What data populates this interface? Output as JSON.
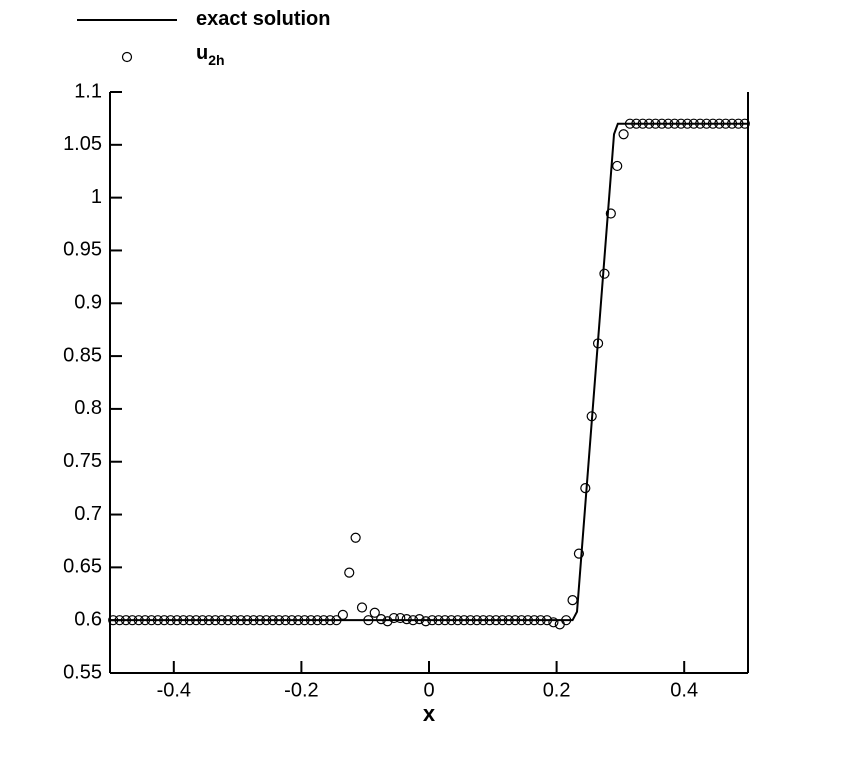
{
  "chart_data": {
    "type": "line-scatter",
    "xlabel": "x",
    "xlim": [
      -0.5,
      0.5
    ],
    "xticks": [
      -0.4,
      -0.2,
      0,
      0.2,
      0.4
    ],
    "ylim": [
      0.55,
      1.1
    ],
    "yticks": [
      0.55,
      0.6,
      0.65,
      0.7,
      0.75,
      0.8,
      0.85,
      0.9,
      0.95,
      1,
      1.05,
      1.1
    ],
    "legend": "top-left",
    "series": [
      {
        "name": "exact solution",
        "mark": "line",
        "color": "#000000",
        "x": [
          -0.5,
          0.225,
          0.232,
          0.29,
          0.296,
          0.5
        ],
        "values": [
          0.6,
          0.6,
          0.608,
          1.06,
          1.07,
          1.07
        ]
      },
      {
        "name": "u",
        "name_sub": "2h",
        "mark": "circle",
        "color": "#000000",
        "x": [
          -0.495,
          -0.485,
          -0.475,
          -0.465,
          -0.455,
          -0.445,
          -0.435,
          -0.425,
          -0.415,
          -0.405,
          -0.395,
          -0.385,
          -0.375,
          -0.365,
          -0.355,
          -0.345,
          -0.335,
          -0.325,
          -0.315,
          -0.305,
          -0.295,
          -0.285,
          -0.275,
          -0.265,
          -0.255,
          -0.245,
          -0.235,
          -0.225,
          -0.215,
          -0.205,
          -0.195,
          -0.185,
          -0.175,
          -0.165,
          -0.155,
          -0.145,
          -0.135,
          -0.125,
          -0.115,
          -0.105,
          -0.095,
          -0.085,
          -0.075,
          -0.065,
          -0.055,
          -0.045,
          -0.035,
          -0.025,
          -0.015,
          -0.005,
          0.005,
          0.015,
          0.025,
          0.035,
          0.045,
          0.055,
          0.065,
          0.075,
          0.085,
          0.095,
          0.105,
          0.115,
          0.125,
          0.135,
          0.145,
          0.155,
          0.165,
          0.175,
          0.185,
          0.195,
          0.205,
          0.215,
          0.225,
          0.235,
          0.245,
          0.255,
          0.265,
          0.275,
          0.285,
          0.295,
          0.305,
          0.315,
          0.325,
          0.335,
          0.345,
          0.355,
          0.365,
          0.375,
          0.385,
          0.395,
          0.405,
          0.415,
          0.425,
          0.435,
          0.445,
          0.455,
          0.465,
          0.475,
          0.485,
          0.495
        ],
        "values": [
          0.6,
          0.6,
          0.6,
          0.6,
          0.6,
          0.6,
          0.6,
          0.6,
          0.6,
          0.6,
          0.6,
          0.6,
          0.6,
          0.6,
          0.6,
          0.6,
          0.6,
          0.6,
          0.6,
          0.6,
          0.6,
          0.6,
          0.6,
          0.6,
          0.6,
          0.6,
          0.6,
          0.6,
          0.6,
          0.6,
          0.6,
          0.6,
          0.6,
          0.6,
          0.6,
          0.6,
          0.605,
          0.645,
          0.678,
          0.612,
          0.6,
          0.607,
          0.601,
          0.599,
          0.602,
          0.602,
          0.601,
          0.6,
          0.601,
          0.599,
          0.6,
          0.6,
          0.6,
          0.6,
          0.6,
          0.6,
          0.6,
          0.6,
          0.6,
          0.6,
          0.6,
          0.6,
          0.6,
          0.6,
          0.6,
          0.6,
          0.6,
          0.6,
          0.6,
          0.598,
          0.596,
          0.6,
          0.619,
          0.663,
          0.725,
          0.793,
          0.862,
          0.928,
          0.985,
          1.03,
          1.06,
          1.07,
          1.07,
          1.07,
          1.07,
          1.07,
          1.07,
          1.07,
          1.07,
          1.07,
          1.07,
          1.07,
          1.07,
          1.07,
          1.07,
          1.07,
          1.07,
          1.07,
          1.07,
          1.07
        ]
      }
    ]
  }
}
